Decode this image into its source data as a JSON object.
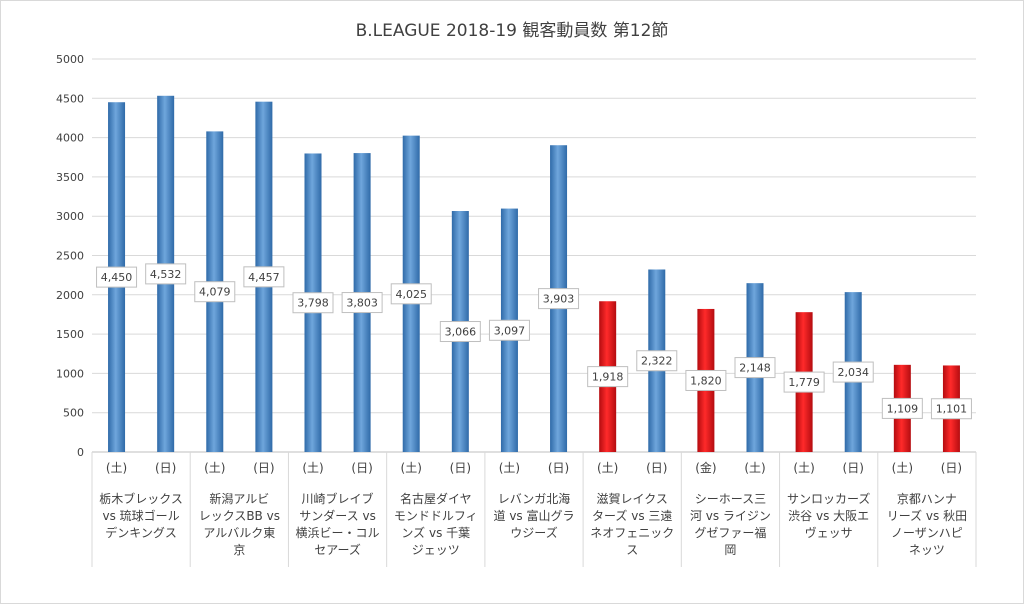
{
  "chart_data": {
    "type": "bar",
    "title": "B.LEAGUE 2018-19 観客動員数 第12節",
    "xlabel": "",
    "ylabel": "",
    "ylim": [
      0,
      5000
    ],
    "yticks": [
      0,
      500,
      1000,
      1500,
      2000,
      2500,
      3000,
      3500,
      4000,
      4500,
      5000
    ],
    "grid": true,
    "legend": "none",
    "colors": {
      "blue": "#4a86c5",
      "red": "#e8141b"
    },
    "groups": [
      {
        "label_lines": [
          "栃木ブレックス",
          "vs 琉球ゴール",
          "デンキングス"
        ],
        "games": [
          {
            "day": "(土)",
            "value": 4450,
            "label": "4,450",
            "color": "blue"
          },
          {
            "day": "(日)",
            "value": 4532,
            "label": "4,532",
            "color": "blue"
          }
        ]
      },
      {
        "label_lines": [
          "新潟アルビ",
          "レックスBB vs",
          "アルバルク東",
          "京"
        ],
        "games": [
          {
            "day": "(土)",
            "value": 4079,
            "label": "4,079",
            "color": "blue"
          },
          {
            "day": "(日)",
            "value": 4457,
            "label": "4,457",
            "color": "blue"
          }
        ]
      },
      {
        "label_lines": [
          "川崎ブレイブ",
          "サンダース vs",
          "横浜ビー・コル",
          "セアーズ"
        ],
        "games": [
          {
            "day": "(土)",
            "value": 3798,
            "label": "3,798",
            "color": "blue"
          },
          {
            "day": "(日)",
            "value": 3803,
            "label": "3,803",
            "color": "blue"
          }
        ]
      },
      {
        "label_lines": [
          "名古屋ダイヤ",
          "モンドドルフィ",
          "ンズ vs 千葉",
          "ジェッツ"
        ],
        "games": [
          {
            "day": "(土)",
            "value": 4025,
            "label": "4,025",
            "color": "blue"
          },
          {
            "day": "(日)",
            "value": 3066,
            "label": "3,066",
            "color": "blue"
          }
        ]
      },
      {
        "label_lines": [
          "レバンガ北海",
          "道 vs 富山グラ",
          "ウジーズ"
        ],
        "games": [
          {
            "day": "(土)",
            "value": 3097,
            "label": "3,097",
            "color": "blue"
          },
          {
            "day": "(日)",
            "value": 3903,
            "label": "3,903",
            "color": "blue"
          }
        ]
      },
      {
        "label_lines": [
          "滋賀レイクス",
          "ターズ vs 三遠",
          "ネオフェニック",
          "ス"
        ],
        "games": [
          {
            "day": "(土)",
            "value": 1918,
            "label": "1,918",
            "color": "red"
          },
          {
            "day": "(日)",
            "value": 2322,
            "label": "2,322",
            "color": "blue"
          }
        ]
      },
      {
        "label_lines": [
          "シーホース三",
          "河 vs ライジン",
          "グゼファー福",
          "岡"
        ],
        "games": [
          {
            "day": "(金)",
            "value": 1820,
            "label": "1,820",
            "color": "red"
          },
          {
            "day": "(土)",
            "value": 2148,
            "label": "2,148",
            "color": "blue"
          }
        ]
      },
      {
        "label_lines": [
          "サンロッカーズ",
          "渋谷 vs 大阪エ",
          "ヴェッサ"
        ],
        "games": [
          {
            "day": "(土)",
            "value": 1779,
            "label": "1,779",
            "color": "red"
          },
          {
            "day": "(日)",
            "value": 2034,
            "label": "2,034",
            "color": "blue"
          }
        ]
      },
      {
        "label_lines": [
          "京都ハンナ",
          "リーズ vs 秋田",
          "ノーザンハピ",
          "ネッツ"
        ],
        "games": [
          {
            "day": "(土)",
            "value": 1109,
            "label": "1,109",
            "color": "red"
          },
          {
            "day": "(日)",
            "value": 1101,
            "label": "1,101",
            "color": "red"
          }
        ]
      }
    ]
  }
}
